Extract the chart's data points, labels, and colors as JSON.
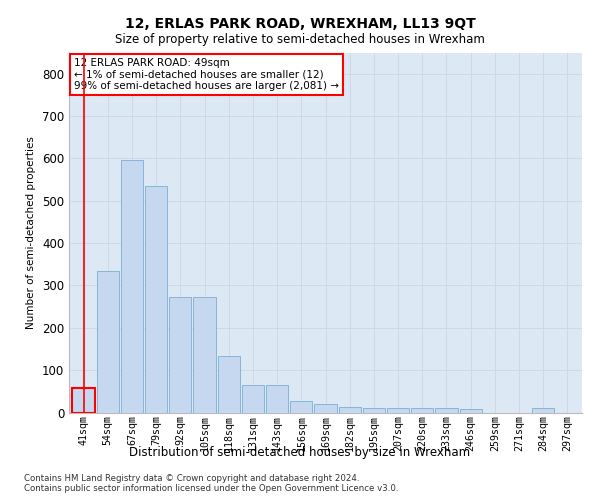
{
  "title": "12, ERLAS PARK ROAD, WREXHAM, LL13 9QT",
  "subtitle": "Size of property relative to semi-detached houses in Wrexham",
  "xlabel": "Distribution of semi-detached houses by size in Wrexham",
  "ylabel": "Number of semi-detached properties",
  "footer_line1": "Contains HM Land Registry data © Crown copyright and database right 2024.",
  "footer_line2": "Contains public sector information licensed under the Open Government Licence v3.0.",
  "annotation_line1": "12 ERLAS PARK ROAD: 49sqm",
  "annotation_line2": "← 1% of semi-detached houses are smaller (12)",
  "annotation_line3": "99% of semi-detached houses are larger (2,081) →",
  "bar_color": "#c5d8f0",
  "bar_edge_color": "#7badd4",
  "highlight_bar_edge_color": "#ff0000",
  "annotation_box_color": "#ffffff",
  "annotation_box_edge_color": "#ff0000",
  "categories": [
    "41sqm",
    "54sqm",
    "67sqm",
    "79sqm",
    "92sqm",
    "105sqm",
    "118sqm",
    "131sqm",
    "143sqm",
    "156sqm",
    "169sqm",
    "182sqm",
    "195sqm",
    "207sqm",
    "220sqm",
    "233sqm",
    "246sqm",
    "259sqm",
    "271sqm",
    "284sqm",
    "297sqm"
  ],
  "values": [
    57,
    333,
    596,
    535,
    272,
    272,
    133,
    65,
    65,
    27,
    20,
    13,
    10,
    10,
    10,
    10,
    8,
    0,
    0,
    10,
    0
  ],
  "highlight_index": 0,
  "ylim": [
    0,
    850
  ],
  "yticks": [
    0,
    100,
    200,
    300,
    400,
    500,
    600,
    700,
    800
  ],
  "grid_color": "#d0d8e8",
  "background_color": "#dde8f5"
}
